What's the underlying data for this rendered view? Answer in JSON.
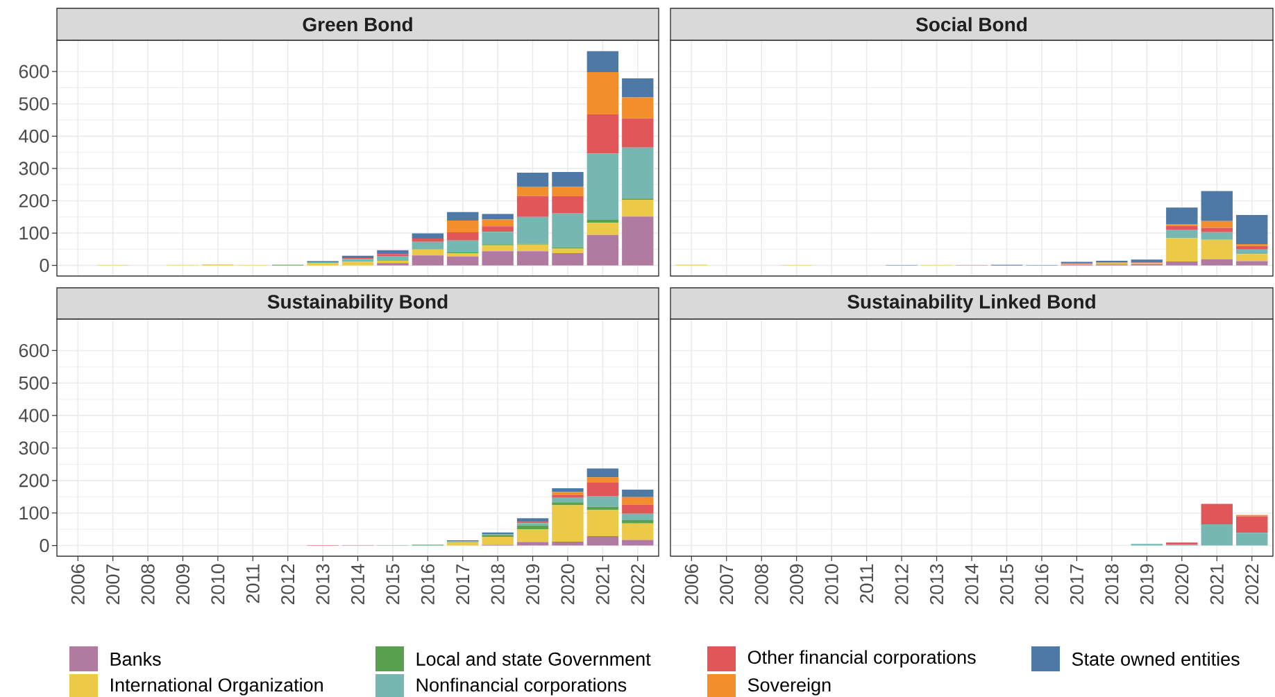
{
  "chart_data": [
    {
      "type": "bar",
      "title": "Green Bond",
      "stacked": true,
      "grid": true,
      "tick_labels": "y",
      "legend": "bottom",
      "ylim": [
        -33,
        697
      ],
      "yticks": [
        0,
        100,
        200,
        300,
        400,
        500,
        600
      ],
      "categories": [
        "2006",
        "2007",
        "2008",
        "2009",
        "2010",
        "2011",
        "2012",
        "2013",
        "2014",
        "2015",
        "2016",
        "2017",
        "2018",
        "2019",
        "2020",
        "2021",
        "2022"
      ],
      "series": [
        {
          "name": "Banks",
          "color": "#b07aa1",
          "values": [
            0,
            0,
            0,
            0,
            0,
            0,
            0,
            0,
            0,
            7,
            31,
            27,
            44,
            44,
            38,
            94,
            151
          ]
        },
        {
          "name": "International Organization",
          "color": "#edc948",
          "values": [
            0,
            1,
            0,
            1,
            3,
            1,
            0,
            8,
            11,
            7,
            18,
            11,
            18,
            20,
            14,
            38,
            52
          ]
        },
        {
          "name": "Local and state Government",
          "color": "#59a14f",
          "values": [
            0,
            0,
            0,
            0,
            0,
            0,
            2,
            0,
            null,
            0,
            0,
            2,
            3,
            3,
            4,
            9,
            4
          ]
        },
        {
          "name": "Nonfinancial corporations",
          "color": "#76b7b2",
          "values": [
            0,
            0,
            0,
            0,
            0,
            0,
            0,
            2,
            9,
            15,
            24,
            37,
            39,
            83,
            105,
            205,
            158
          ]
        },
        {
          "name": "Other financial corporations",
          "color": "#e15759",
          "values": [
            0,
            0,
            0,
            0,
            0,
            0,
            0,
            0,
            3,
            6,
            10,
            25,
            17,
            65,
            53,
            121,
            90
          ]
        },
        {
          "name": "Sovereign",
          "color": "#f28e2b",
          "values": [
            0,
            0,
            0,
            0,
            0,
            0,
            0,
            0,
            0,
            0,
            0,
            37,
            21,
            29,
            29,
            131,
            65
          ]
        },
        {
          "name": "State owned entities",
          "color": "#4e79a7",
          "values": [
            0,
            0,
            0,
            0,
            0,
            0,
            0,
            3,
            7,
            12,
            16,
            26,
            17,
            43,
            46,
            65,
            59
          ]
        }
      ]
    },
    {
      "type": "bar",
      "title": "Social Bond",
      "stacked": true,
      "grid": true,
      "tick_labels": false,
      "ylim": [
        -33,
        697
      ],
      "yticks": [
        0,
        100,
        200,
        300,
        400,
        500,
        600
      ],
      "categories": [
        "2006",
        "2007",
        "2008",
        "2009",
        "2010",
        "2011",
        "2012",
        "2013",
        "2014",
        "2015",
        "2016",
        "2017",
        "2018",
        "2019",
        "2020",
        "2021",
        "2022"
      ],
      "series": [
        {
          "color": "#b07aa1",
          "values": [
            0,
            0,
            0,
            0,
            0,
            0,
            0,
            0,
            1,
            0,
            0,
            2,
            3,
            4,
            12,
            19,
            13
          ]
        },
        {
          "color": "#edc948",
          "values": [
            2,
            0,
            0,
            1,
            0,
            0,
            0,
            1,
            0,
            0,
            0,
            2,
            3,
            2,
            72,
            60,
            22
          ]
        },
        {
          "color": "#59a14f",
          "values": [
            0,
            0,
            0,
            0,
            0,
            0,
            0,
            0,
            0,
            0,
            0,
            0,
            0,
            0,
            null,
            0,
            0
          ]
        },
        {
          "color": "#76b7b2",
          "values": [
            0,
            0,
            0,
            0,
            0,
            0,
            0,
            0,
            0,
            0,
            0,
            0,
            0,
            1,
            27,
            24,
            14
          ]
        },
        {
          "color": "#e15759",
          "values": [
            0,
            0,
            0,
            0,
            0,
            0,
            0,
            0,
            0,
            0,
            0,
            2,
            1,
            2,
            11,
            13,
            11
          ]
        },
        {
          "color": "#f28e2b",
          "values": [
            0,
            0,
            0,
            0,
            0,
            0,
            0,
            0,
            0,
            0,
            0,
            0,
            2,
            0,
            6,
            21,
            6
          ]
        },
        {
          "color": "#4e79a7",
          "values": [
            0,
            0,
            0,
            0,
            0,
            0,
            1,
            0,
            0,
            2,
            1,
            5,
            5,
            9,
            51,
            93,
            90
          ]
        }
      ]
    },
    {
      "type": "bar",
      "title": "Sustainability Bond",
      "stacked": true,
      "grid": true,
      "ylim": [
        -33,
        697
      ],
      "yticks": [
        0,
        100,
        200,
        300,
        400,
        500,
        600
      ],
      "categories": [
        "2006",
        "2007",
        "2008",
        "2009",
        "2010",
        "2011",
        "2012",
        "2013",
        "2014",
        "2015",
        "2016",
        "2017",
        "2018",
        "2019",
        "2020",
        "2021",
        "2022"
      ],
      "series": [
        {
          "color": "#b07aa1",
          "values": [
            0,
            0,
            0,
            0,
            0,
            0,
            0,
            0,
            1,
            0,
            0,
            0,
            2,
            11,
            12,
            29,
            17
          ]
        },
        {
          "color": "#edc948",
          "values": [
            0,
            0,
            0,
            0,
            0,
            0,
            0,
            0,
            0,
            0,
            0,
            9,
            25,
            39,
            112,
            80,
            51
          ]
        },
        {
          "color": "#59a14f",
          "values": [
            0,
            0,
            0,
            0,
            0,
            0,
            0,
            0,
            0,
            0,
            1,
            2,
            4,
            12,
            9,
            10,
            10
          ]
        },
        {
          "color": "#76b7b2",
          "values": [
            0,
            0,
            0,
            0,
            0,
            0,
            0,
            0,
            0,
            1,
            2,
            2,
            3,
            7,
            14,
            32,
            20
          ]
        },
        {
          "color": "#e15759",
          "values": [
            0,
            0,
            0,
            0,
            0,
            0,
            0,
            1,
            0,
            0,
            null,
            0,
            0,
            4,
            9,
            42,
            28
          ]
        },
        {
          "color": "#f28e2b",
          "values": [
            0,
            0,
            0,
            0,
            0,
            0,
            0,
            0,
            0,
            0,
            0,
            0,
            0,
            0,
            9,
            17,
            23
          ]
        },
        {
          "color": "#4e79a7",
          "values": [
            0,
            0,
            0,
            0,
            0,
            0,
            0,
            0,
            0,
            0,
            0,
            3,
            6,
            11,
            11,
            27,
            23
          ]
        }
      ]
    },
    {
      "type": "bar",
      "title": "Sustainability Linked Bond",
      "stacked": true,
      "grid": true,
      "tick_labels": "x",
      "ylim": [
        -33,
        697
      ],
      "yticks": [
        0,
        100,
        200,
        300,
        400,
        500,
        600
      ],
      "categories": [
        "2006",
        "2007",
        "2008",
        "2009",
        "2010",
        "2011",
        "2012",
        "2013",
        "2014",
        "2015",
        "2016",
        "2017",
        "2018",
        "2019",
        "2020",
        "2021",
        "2022"
      ],
      "series": [
        {
          "color": "#b07aa1",
          "values": [
            0,
            0,
            0,
            0,
            0,
            0,
            0,
            0,
            0,
            0,
            0,
            0,
            0,
            0,
            0,
            0,
            0
          ]
        },
        {
          "color": "#edc948",
          "values": [
            0,
            0,
            0,
            0,
            0,
            0,
            0,
            0,
            0,
            0,
            0,
            0,
            0,
            0,
            0,
            0,
            0
          ]
        },
        {
          "color": "#59a14f",
          "values": [
            0,
            0,
            0,
            0,
            0,
            0,
            0,
            0,
            0,
            0,
            0,
            0,
            0,
            0,
            0,
            0,
            0
          ]
        },
        {
          "color": "#76b7b2",
          "values": [
            0,
            0,
            0,
            0,
            0,
            0,
            0,
            0,
            0,
            0,
            0,
            0,
            0,
            5,
            3,
            65,
            39
          ]
        },
        {
          "color": "#e15759",
          "values": [
            0,
            0,
            0,
            0,
            0,
            0,
            0,
            0,
            0,
            0,
            0,
            0,
            0,
            0,
            6,
            63,
            51
          ]
        },
        {
          "color": "#f28e2b",
          "values": [
            0,
            0,
            0,
            0,
            0,
            0,
            0,
            0,
            0,
            0,
            0,
            0,
            0,
            0,
            0,
            0,
            4
          ]
        },
        {
          "color": "#4e79a7",
          "values": [
            0,
            0,
            0,
            0,
            0,
            0,
            0,
            0,
            0,
            0,
            0,
            0,
            0,
            0,
            0,
            0,
            0
          ]
        }
      ]
    }
  ]
}
